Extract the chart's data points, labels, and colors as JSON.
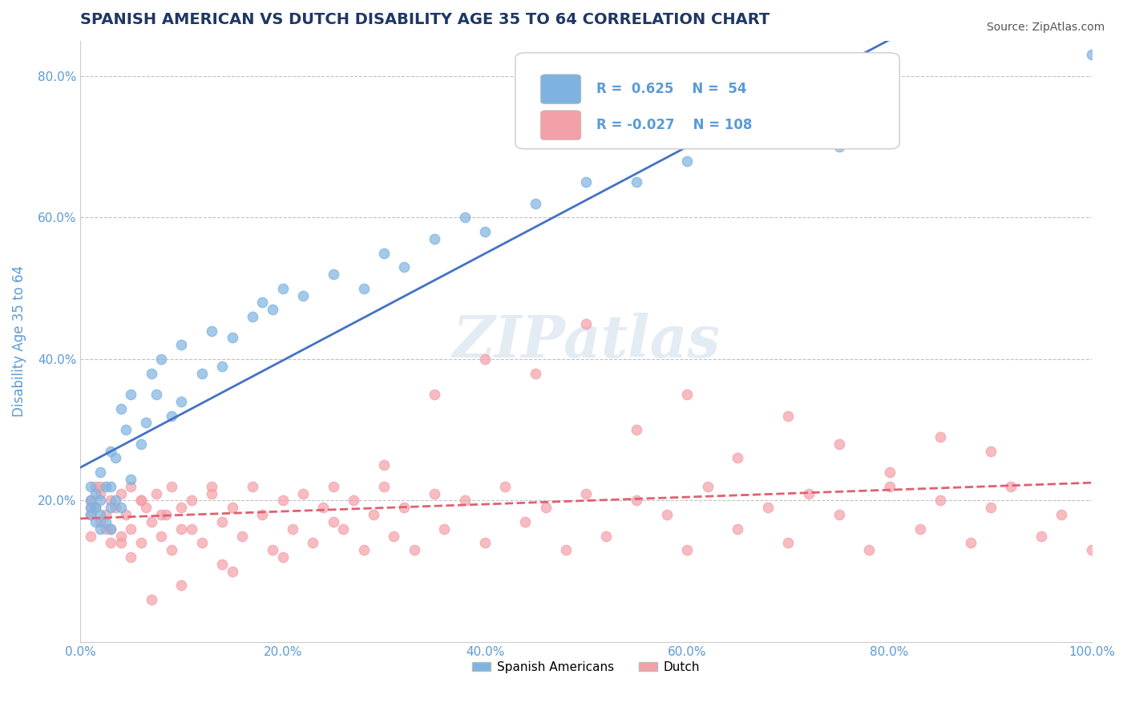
{
  "title": "SPANISH AMERICAN VS DUTCH DISABILITY AGE 35 TO 64 CORRELATION CHART",
  "source": "Source: ZipAtlas.com",
  "xlabel": "",
  "ylabel": "Disability Age 35 to 64",
  "xlim": [
    0.0,
    1.0
  ],
  "ylim": [
    0.0,
    0.85
  ],
  "xtick_labels": [
    "0.0%",
    "20.0%",
    "40.0%",
    "60.0%",
    "80.0%",
    "100.0%"
  ],
  "xtick_vals": [
    0.0,
    0.2,
    0.4,
    0.6,
    0.8,
    1.0
  ],
  "ytick_labels": [
    "20.0%",
    "40.0%",
    "60.0%",
    "80.0%"
  ],
  "ytick_vals": [
    0.2,
    0.4,
    0.6,
    0.8
  ],
  "legend_label1": "Spanish Americans",
  "legend_label2": "Dutch",
  "r1": 0.625,
  "n1": 54,
  "r2": -0.027,
  "n2": 108,
  "color1": "#7EB3E0",
  "color2": "#F4A0A8",
  "line_color1": "#4472C4",
  "line_color2": "#E06070",
  "watermark": "ZIPatlas",
  "title_color": "#1F3864",
  "axis_color": "#5B9BD5",
  "spanish_x": [
    0.01,
    0.01,
    0.01,
    0.01,
    0.015,
    0.015,
    0.015,
    0.02,
    0.02,
    0.02,
    0.02,
    0.025,
    0.025,
    0.03,
    0.03,
    0.03,
    0.03,
    0.035,
    0.035,
    0.04,
    0.04,
    0.045,
    0.05,
    0.05,
    0.06,
    0.065,
    0.07,
    0.075,
    0.08,
    0.09,
    0.1,
    0.1,
    0.12,
    0.13,
    0.14,
    0.15,
    0.17,
    0.18,
    0.19,
    0.2,
    0.22,
    0.25,
    0.28,
    0.3,
    0.32,
    0.35,
    0.38,
    0.4,
    0.45,
    0.5,
    0.55,
    0.6,
    0.75,
    1.0
  ],
  "spanish_y": [
    0.18,
    0.19,
    0.2,
    0.22,
    0.17,
    0.19,
    0.21,
    0.16,
    0.18,
    0.2,
    0.24,
    0.17,
    0.22,
    0.16,
    0.19,
    0.22,
    0.27,
    0.2,
    0.26,
    0.19,
    0.33,
    0.3,
    0.23,
    0.35,
    0.28,
    0.31,
    0.38,
    0.35,
    0.4,
    0.32,
    0.34,
    0.42,
    0.38,
    0.44,
    0.39,
    0.43,
    0.46,
    0.48,
    0.47,
    0.5,
    0.49,
    0.52,
    0.5,
    0.55,
    0.53,
    0.57,
    0.6,
    0.58,
    0.62,
    0.65,
    0.65,
    0.68,
    0.7,
    0.83
  ],
  "dutch_x": [
    0.01,
    0.01,
    0.01,
    0.015,
    0.015,
    0.02,
    0.02,
    0.025,
    0.025,
    0.03,
    0.03,
    0.035,
    0.04,
    0.04,
    0.045,
    0.05,
    0.05,
    0.06,
    0.06,
    0.065,
    0.07,
    0.075,
    0.08,
    0.085,
    0.09,
    0.09,
    0.1,
    0.1,
    0.11,
    0.12,
    0.13,
    0.14,
    0.14,
    0.15,
    0.16,
    0.17,
    0.18,
    0.19,
    0.2,
    0.21,
    0.22,
    0.23,
    0.24,
    0.25,
    0.26,
    0.27,
    0.28,
    0.29,
    0.3,
    0.31,
    0.32,
    0.33,
    0.35,
    0.36,
    0.38,
    0.4,
    0.42,
    0.44,
    0.46,
    0.48,
    0.5,
    0.52,
    0.55,
    0.58,
    0.6,
    0.62,
    0.65,
    0.68,
    0.7,
    0.72,
    0.75,
    0.78,
    0.8,
    0.83,
    0.85,
    0.88,
    0.9,
    0.92,
    0.95,
    0.97,
    1.0,
    0.55,
    0.6,
    0.65,
    0.7,
    0.75,
    0.8,
    0.85,
    0.9,
    0.4,
    0.45,
    0.5,
    0.35,
    0.3,
    0.25,
    0.2,
    0.15,
    0.1,
    0.07,
    0.05,
    0.03,
    0.02,
    0.01,
    0.04,
    0.06,
    0.08,
    0.11,
    0.13
  ],
  "dutch_y": [
    0.18,
    0.2,
    0.15,
    0.19,
    0.22,
    0.17,
    0.21,
    0.18,
    0.16,
    0.2,
    0.14,
    0.19,
    0.21,
    0.15,
    0.18,
    0.22,
    0.16,
    0.2,
    0.14,
    0.19,
    0.17,
    0.21,
    0.15,
    0.18,
    0.22,
    0.13,
    0.19,
    0.16,
    0.2,
    0.14,
    0.22,
    0.17,
    0.11,
    0.19,
    0.15,
    0.22,
    0.18,
    0.13,
    0.2,
    0.16,
    0.21,
    0.14,
    0.19,
    0.22,
    0.16,
    0.2,
    0.13,
    0.18,
    0.22,
    0.15,
    0.19,
    0.13,
    0.21,
    0.16,
    0.2,
    0.14,
    0.22,
    0.17,
    0.19,
    0.13,
    0.21,
    0.15,
    0.2,
    0.18,
    0.13,
    0.22,
    0.16,
    0.19,
    0.14,
    0.21,
    0.18,
    0.13,
    0.22,
    0.16,
    0.2,
    0.14,
    0.19,
    0.22,
    0.15,
    0.18,
    0.13,
    0.3,
    0.35,
    0.26,
    0.32,
    0.28,
    0.24,
    0.29,
    0.27,
    0.4,
    0.38,
    0.45,
    0.35,
    0.25,
    0.17,
    0.12,
    0.1,
    0.08,
    0.06,
    0.12,
    0.16,
    0.22,
    0.19,
    0.14,
    0.2,
    0.18,
    0.16,
    0.21
  ]
}
